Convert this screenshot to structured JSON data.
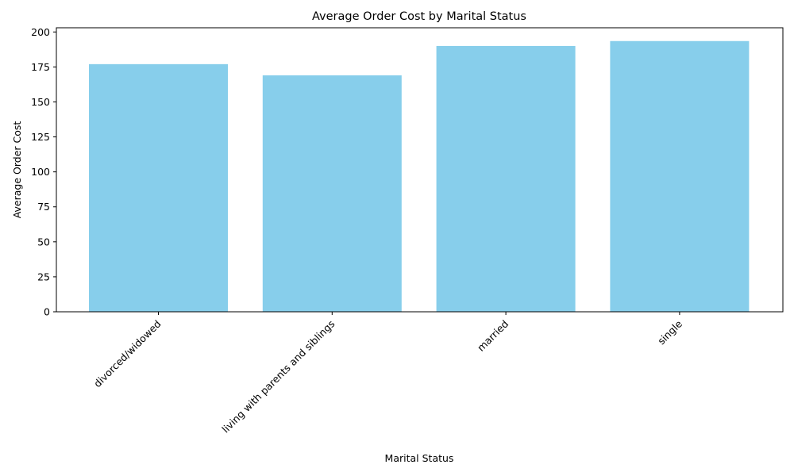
{
  "chart_data": {
    "type": "bar",
    "title": "Average Order Cost by Marital Status",
    "xlabel": "Marital Status",
    "ylabel": "Average Order Cost",
    "categories": [
      "divorced/widowed",
      "living with parents and siblings",
      "married",
      "single"
    ],
    "values": [
      177,
      169,
      190,
      193.5
    ],
    "ylim": [
      0,
      203
    ],
    "yticks": [
      0,
      25,
      50,
      75,
      100,
      125,
      150,
      175,
      200
    ],
    "bar_color": "#87CEEB",
    "grid": false,
    "legend": "none"
  }
}
